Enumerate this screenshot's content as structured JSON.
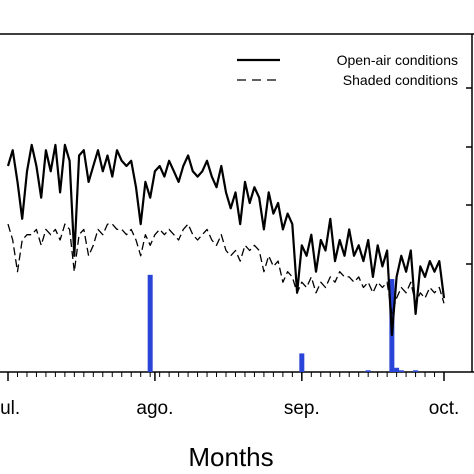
{
  "chart_data": {
    "type": "line",
    "xlabel": "Months",
    "ylabel": "",
    "title": "",
    "x_ticks": [
      "jul.",
      "ago.",
      "sep.",
      "oct."
    ],
    "x_tick_days": [
      0,
      31,
      62,
      92
    ],
    "legend_position": "top-right",
    "series": [
      {
        "name": "Open-air conditions",
        "style": "solid",
        "color": "#000000",
        "x": [
          0,
          1,
          2,
          3,
          4,
          5,
          6,
          7,
          8,
          9,
          10,
          11,
          12,
          13,
          14,
          15,
          16,
          17,
          18,
          19,
          20,
          21,
          22,
          23,
          24,
          25,
          26,
          27,
          28,
          29,
          30,
          31,
          32,
          33,
          34,
          35,
          36,
          37,
          38,
          39,
          40,
          41,
          42,
          43,
          44,
          45,
          46,
          47,
          48,
          49,
          50,
          51,
          52,
          53,
          54,
          55,
          56,
          57,
          58,
          59,
          60,
          61,
          62,
          63,
          64,
          65,
          66,
          67,
          68,
          69,
          70,
          71,
          72,
          73,
          74,
          75,
          76,
          77,
          78,
          79,
          80,
          81,
          82,
          83,
          84,
          85,
          86,
          87,
          88,
          89,
          90,
          91,
          92
        ],
        "values": [
          27.5,
          29.0,
          26.0,
          22.5,
          27.0,
          29.5,
          27.5,
          24.5,
          29.0,
          27.0,
          29.5,
          25.0,
          29.5,
          28.0,
          19.0,
          28.5,
          29.0,
          26.0,
          27.5,
          29.0,
          27.0,
          28.5,
          26.5,
          29.0,
          28.0,
          27.5,
          28.0,
          25.5,
          22.0,
          26.0,
          24.5,
          27.0,
          27.5,
          26.5,
          28.0,
          27.0,
          26.0,
          27.5,
          28.5,
          27.0,
          26.5,
          27.0,
          28.0,
          26.5,
          25.5,
          27.5,
          25.0,
          23.5,
          25.0,
          22.0,
          26.0,
          24.0,
          25.5,
          24.5,
          21.5,
          25.0,
          23.0,
          24.0,
          21.5,
          23.0,
          22.0,
          15.5,
          20.0,
          19.0,
          21.0,
          17.5,
          20.5,
          19.5,
          22.5,
          18.5,
          20.5,
          19.0,
          21.5,
          19.0,
          20.0,
          18.5,
          20.5,
          17.0,
          20.0,
          18.0,
          19.5,
          11.5,
          17.0,
          19.0,
          17.5,
          19.5,
          13.5,
          18.0,
          17.0,
          18.5,
          17.5,
          18.5,
          15.0
        ],
        "note": "values read against the left axis, whose numeric tick labels are outside the visible crop"
      },
      {
        "name": "Shaded conditions",
        "style": "dashed",
        "color": "#000000",
        "x": [
          0,
          1,
          2,
          3,
          4,
          5,
          6,
          7,
          8,
          9,
          10,
          11,
          12,
          13,
          14,
          15,
          16,
          17,
          18,
          19,
          20,
          21,
          22,
          23,
          24,
          25,
          26,
          27,
          28,
          29,
          30,
          31,
          32,
          33,
          34,
          35,
          36,
          37,
          38,
          39,
          40,
          41,
          42,
          43,
          44,
          45,
          46,
          47,
          48,
          49,
          50,
          51,
          52,
          53,
          54,
          55,
          56,
          57,
          58,
          59,
          60,
          61,
          62,
          63,
          64,
          65,
          66,
          67,
          68,
          69,
          70,
          71,
          72,
          73,
          74,
          75,
          76,
          77,
          78,
          79,
          80,
          81,
          82,
          83,
          84,
          85,
          86,
          87,
          88,
          89,
          90,
          91,
          92
        ],
        "values": [
          22.0,
          20.5,
          17.5,
          20.5,
          21.0,
          21.0,
          21.5,
          20.0,
          21.5,
          21.0,
          21.5,
          20.5,
          22.0,
          21.5,
          17.5,
          21.0,
          21.5,
          19.0,
          20.0,
          21.5,
          21.0,
          22.0,
          22.0,
          21.5,
          21.5,
          21.0,
          21.5,
          20.5,
          19.0,
          21.0,
          20.0,
          21.0,
          21.5,
          21.0,
          21.5,
          21.0,
          20.5,
          21.5,
          22.0,
          21.0,
          20.5,
          21.0,
          21.5,
          20.5,
          20.0,
          21.0,
          19.5,
          19.0,
          19.5,
          18.5,
          20.0,
          19.5,
          20.0,
          19.5,
          17.5,
          19.0,
          18.0,
          18.5,
          16.5,
          17.5,
          17.0,
          15.5,
          16.5,
          16.0,
          17.0,
          15.5,
          16.5,
          16.0,
          17.0,
          16.5,
          17.5,
          17.0,
          17.0,
          16.5,
          17.0,
          16.0,
          16.5,
          15.5,
          16.5,
          16.0,
          16.5,
          13.5,
          15.0,
          16.0,
          15.5,
          16.5,
          14.5,
          15.5,
          15.0,
          16.0,
          15.5,
          16.0,
          14.5
        ]
      },
      {
        "name": "",
        "type": "bar",
        "color": "#2a44d8",
        "x": [
          30,
          62,
          76,
          81,
          82,
          83,
          86
        ],
        "values": [
          11.5,
          2.2,
          0.2,
          11.0,
          0.5,
          0.2,
          0.2
        ],
        "note": "bars read against a secondary scale whose tick labels are outside the visible crop"
      }
    ],
    "grid": false
  }
}
